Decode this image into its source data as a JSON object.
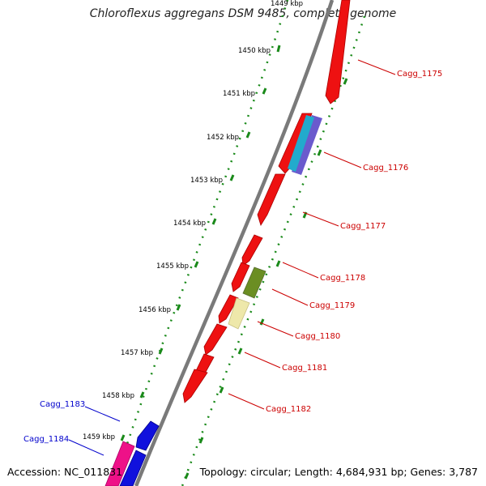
{
  "title": "Chloroflexus aggregans DSM 9485, complete genome",
  "accession_text": "Accession: NC_011831",
  "topology_text": "Topology: circular; Length: 4,684,931 bp; Genes: 3,787",
  "ticks": [
    {
      "label": "1449 kbp"
    },
    {
      "label": "1450 kbp"
    },
    {
      "label": "1451 kbp"
    },
    {
      "label": "1452 kbp"
    },
    {
      "label": "1453 kbp"
    },
    {
      "label": "1454 kbp"
    },
    {
      "label": "1455 kbp"
    },
    {
      "label": "1456 kbp"
    },
    {
      "label": "1457 kbp"
    },
    {
      "label": "1458 kbp"
    },
    {
      "label": "1459 kbp"
    }
  ],
  "gene_labels": [
    {
      "text": "Cagg_1175",
      "color": "#cc0000"
    },
    {
      "text": "Cagg_1176",
      "color": "#cc0000"
    },
    {
      "text": "Cagg_1177",
      "color": "#cc0000"
    },
    {
      "text": "Cagg_1178",
      "color": "#cc0000"
    },
    {
      "text": "Cagg_1179",
      "color": "#cc0000"
    },
    {
      "text": "Cagg_1180",
      "color": "#cc0000"
    },
    {
      "text": "Cagg_1181",
      "color": "#cc0000"
    },
    {
      "text": "Cagg_1182",
      "color": "#cc0000"
    },
    {
      "text": "Cagg_1183",
      "color": "#0000cc"
    },
    {
      "text": "Cagg_1184",
      "color": "#0000cc"
    }
  ],
  "colors": {
    "forward_cds": "#ee1111",
    "reverse_cds": "#1111dd",
    "backbone": "#808080",
    "tick_dots": "#1a8a1a",
    "gene_teal": "#22aacc",
    "gene_olive": "#6b8e23",
    "gene_khaki": "#eee8aa",
    "gene_purple": "#6a5acd",
    "gene_pink": "#ee1188"
  }
}
